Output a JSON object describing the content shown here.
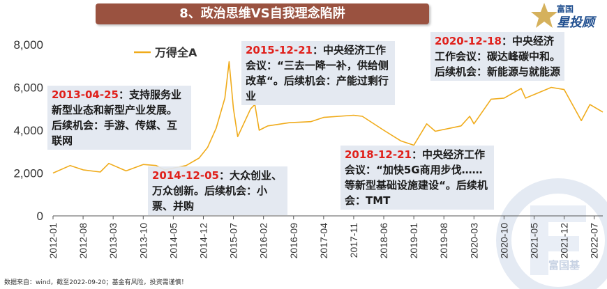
{
  "title": "8、政治思维VS自我理念陷阱",
  "brand": {
    "small": "富国",
    "big_1": "星",
    "big_2": "投顾",
    "icon": "star-logo-icon"
  },
  "watermark": {
    "text": "富国基",
    "icon": "fuguo-watermark-icon"
  },
  "source": "数据来自：wind，截至2022-09-20；基金有风险，投资需谨慎！",
  "annotations": [
    {
      "date": "2013-04-25",
      "text": "：支持服务业新型业态和新型产业发展。后续机会：手游、传媒、互联网"
    },
    {
      "date": "2014-12-05",
      "text": "：大众创业、万众创新。后续机会：小票、并购"
    },
    {
      "date": "2015-12-21",
      "text": "：中央经济工作会议：“三去一降一补，供给侧改革“。后续机会：产能过剩行业"
    },
    {
      "date": "2018-12-21",
      "text": "：中央经济工作会议：“加快5G商用步伐……等新型基础设施建设“。后续机会：TMT"
    },
    {
      "date": "2020-12-18",
      "text": "：中央经济工作会议：碳达峰碳中和。后续机会：新能源与就能源"
    }
  ],
  "chart_data": {
    "type": "line",
    "ylim": [
      0,
      8000
    ],
    "yticks": [
      "0",
      "2,000",
      "4,000",
      "6,000",
      "8,000"
    ],
    "xticks": [
      "2012-01",
      "2012-08",
      "2013-03",
      "2013-10",
      "2014-05",
      "2014-12",
      "2015-07",
      "2016-02",
      "2016-09",
      "2017-04",
      "2017-11",
      "2018-06",
      "2019-01",
      "2019-08",
      "2020-03",
      "2020-10",
      "2021-05",
      "2021-12",
      "2022-07"
    ],
    "x_start": "2012-01",
    "x_end": "2022-09",
    "series": [
      {
        "name": "万得全A",
        "color": "#f0ab1a",
        "points": [
          [
            "2012-01",
            2000
          ],
          [
            "2012-05",
            2350
          ],
          [
            "2012-08",
            2150
          ],
          [
            "2012-12",
            2050
          ],
          [
            "2013-02",
            2450
          ],
          [
            "2013-06",
            2100
          ],
          [
            "2013-10",
            2400
          ],
          [
            "2014-01",
            2350
          ],
          [
            "2014-03",
            2150
          ],
          [
            "2014-08",
            2350
          ],
          [
            "2014-11",
            2700
          ],
          [
            "2015-01",
            3200
          ],
          [
            "2015-03",
            4100
          ],
          [
            "2015-05",
            5500
          ],
          [
            "2015-06",
            7200
          ],
          [
            "2015-07",
            5000
          ],
          [
            "2015-08",
            3700
          ],
          [
            "2015-11",
            5000
          ],
          [
            "2015-12",
            5200
          ],
          [
            "2016-01",
            4000
          ],
          [
            "2016-03",
            4200
          ],
          [
            "2016-08",
            4350
          ],
          [
            "2017-01",
            4400
          ],
          [
            "2017-04",
            4600
          ],
          [
            "2017-11",
            4700
          ],
          [
            "2018-01",
            4650
          ],
          [
            "2018-06",
            4000
          ],
          [
            "2018-10",
            3500
          ],
          [
            "2019-01",
            3300
          ],
          [
            "2019-04",
            4300
          ],
          [
            "2019-06",
            3950
          ],
          [
            "2019-12",
            4200
          ],
          [
            "2020-02",
            4650
          ],
          [
            "2020-03",
            4300
          ],
          [
            "2020-07",
            5450
          ],
          [
            "2020-10",
            5500
          ],
          [
            "2021-02",
            5950
          ],
          [
            "2021-03",
            5500
          ],
          [
            "2021-09",
            6000
          ],
          [
            "2021-12",
            5900
          ],
          [
            "2022-04",
            4450
          ],
          [
            "2022-06",
            5200
          ],
          [
            "2022-09",
            4850
          ]
        ]
      }
    ]
  }
}
